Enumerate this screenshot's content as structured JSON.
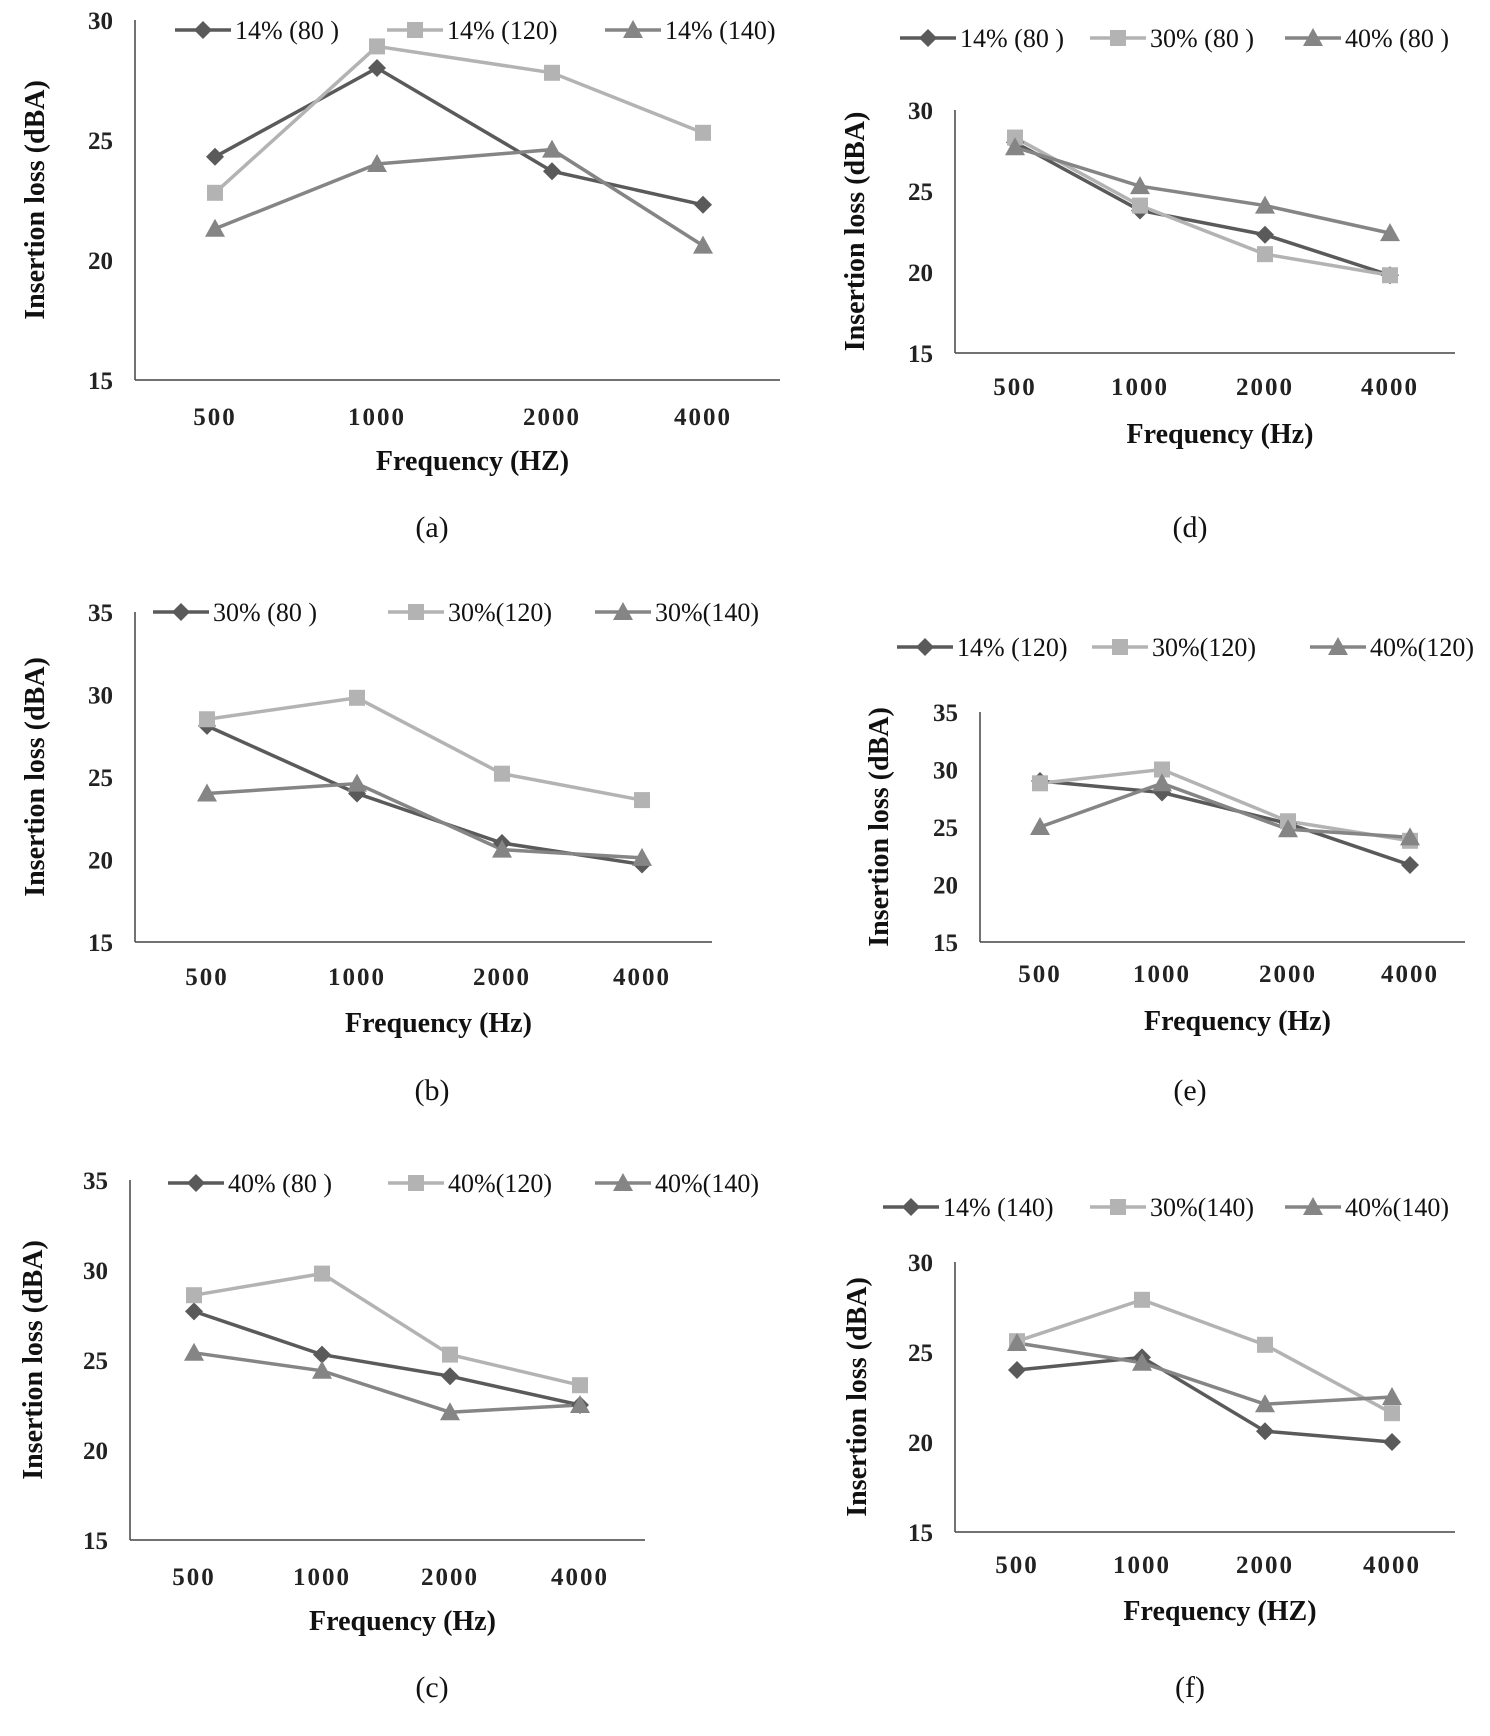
{
  "colors": {
    "diamond": "#5a5a5a",
    "square": "#b3b3b3",
    "triangle": "#858585",
    "axis": "#444444"
  },
  "chart_data": [
    {
      "id": "a",
      "type": "line",
      "label": "(a)",
      "xlabel": "Frequency  (HZ)",
      "ylabel": "Insertion  loss (dBA)",
      "categories": [
        "500",
        "1000",
        "2000",
        "4000"
      ],
      "ylim": [
        15,
        30
      ],
      "yticks": [
        "15",
        "20",
        "25",
        "30"
      ],
      "legend_position": "top",
      "series": [
        {
          "name": "14% (80 )",
          "marker": "diamond",
          "values": [
            24.3,
            28.0,
            23.7,
            22.3
          ]
        },
        {
          "name": "14% (120)",
          "marker": "square",
          "values": [
            22.8,
            28.9,
            27.8,
            25.3
          ]
        },
        {
          "name": "14%  (140)",
          "marker": "triangle",
          "values": [
            21.3,
            24.0,
            24.6,
            20.6
          ]
        }
      ]
    },
    {
      "id": "d",
      "type": "line",
      "label": "(d)",
      "xlabel": "Frequency  (Hz)",
      "ylabel": "Insertion  loss (dBA)",
      "categories": [
        "500",
        "1000",
        "2000",
        "4000"
      ],
      "ylim": [
        15,
        30
      ],
      "yticks": [
        "15",
        "20",
        "25",
        "30"
      ],
      "legend_position": "top",
      "series": [
        {
          "name": "14% (80 )",
          "marker": "diamond",
          "values": [
            28.0,
            23.8,
            22.3,
            19.8
          ]
        },
        {
          "name": "30% (80 )",
          "marker": "square",
          "values": [
            28.3,
            24.1,
            21.1,
            19.8
          ]
        },
        {
          "name": "40% (80 )",
          "marker": "triangle",
          "values": [
            27.7,
            25.3,
            24.1,
            22.4
          ]
        }
      ]
    },
    {
      "id": "b",
      "type": "line",
      "label": "(b)",
      "xlabel": "Frequency  (Hz)",
      "ylabel": "Insertion  loss (dBA)",
      "categories": [
        "500",
        "1000",
        "2000",
        "4000"
      ],
      "ylim": [
        15,
        35
      ],
      "yticks": [
        "15",
        "20",
        "25",
        "30",
        "35"
      ],
      "legend_position": "top",
      "series": [
        {
          "name": "30% (80 )",
          "marker": "diamond",
          "values": [
            28.1,
            24.0,
            21.0,
            19.7
          ]
        },
        {
          "name": "30%(120)",
          "marker": "square",
          "values": [
            28.5,
            29.8,
            25.2,
            23.6
          ]
        },
        {
          "name": "30%(140)",
          "marker": "triangle",
          "values": [
            24.0,
            24.6,
            20.6,
            20.1
          ]
        }
      ]
    },
    {
      "id": "e",
      "type": "line",
      "label": "(e)",
      "xlabel": "Frequency  (Hz)",
      "ylabel": "Insertion  loss (dBA)",
      "categories": [
        "500",
        "1000",
        "2000",
        "4000"
      ],
      "ylim": [
        15,
        35
      ],
      "yticks": [
        "15",
        "20",
        "25",
        "30",
        "35"
      ],
      "legend_position": "top",
      "series": [
        {
          "name": "14% (120)",
          "marker": "diamond",
          "values": [
            29.0,
            28.0,
            25.3,
            21.7
          ]
        },
        {
          "name": "30%(120)",
          "marker": "square",
          "values": [
            28.8,
            30.0,
            25.5,
            23.8
          ]
        },
        {
          "name": "40%(120)",
          "marker": "triangle",
          "values": [
            25.0,
            28.8,
            24.8,
            24.1
          ]
        }
      ]
    },
    {
      "id": "c",
      "type": "line",
      "label": "(c)",
      "xlabel": "Frequency  (Hz)",
      "ylabel": "Insertion  loss (dBA)",
      "categories": [
        "500",
        "1000",
        "2000",
        "4000"
      ],
      "ylim": [
        15,
        35
      ],
      "yticks": [
        "15",
        "20",
        "25",
        "30",
        "35"
      ],
      "legend_position": "top",
      "series": [
        {
          "name": "40% (80 )",
          "marker": "diamond",
          "values": [
            27.7,
            25.3,
            24.1,
            22.5
          ]
        },
        {
          "name": "40%(120)",
          "marker": "square",
          "values": [
            28.6,
            29.8,
            25.3,
            23.6
          ]
        },
        {
          "name": "40%(140)",
          "marker": "triangle",
          "values": [
            25.4,
            24.4,
            22.1,
            22.5
          ]
        }
      ]
    },
    {
      "id": "f",
      "type": "line",
      "label": "(f)",
      "xlabel": "Frequency  (HZ)",
      "ylabel": "Insertion  loss (dBA)",
      "categories": [
        "500",
        "1000",
        "2000",
        "4000"
      ],
      "ylim": [
        15,
        30
      ],
      "yticks": [
        "15",
        "20",
        "25",
        "30"
      ],
      "legend_position": "top",
      "series": [
        {
          "name": "14%  (140)",
          "marker": "diamond",
          "values": [
            24.0,
            24.7,
            20.6,
            20.0
          ]
        },
        {
          "name": "30%(140)",
          "marker": "square",
          "values": [
            25.6,
            27.9,
            25.4,
            21.6
          ]
        },
        {
          "name": "40%(140)",
          "marker": "triangle",
          "values": [
            25.5,
            24.4,
            22.1,
            22.5
          ]
        }
      ]
    }
  ]
}
